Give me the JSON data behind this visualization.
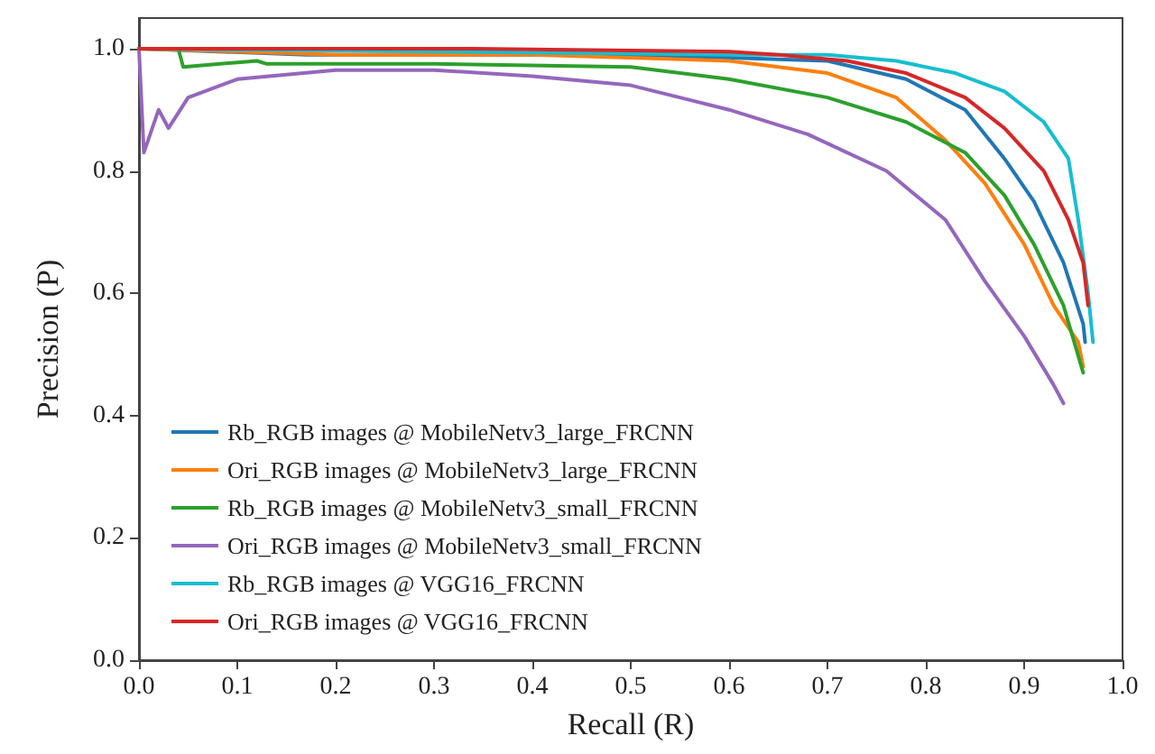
{
  "chart_data": {
    "type": "line",
    "xlabel": "Recall (R)",
    "ylabel": "Precision (P)",
    "xlim": [
      0,
      1
    ],
    "ylim": [
      0,
      1.05
    ],
    "xticks": [
      {
        "value": 0,
        "label": "0.0"
      },
      0.1,
      0.2,
      0.3,
      0.4,
      0.5,
      0.6,
      0.7,
      0.8,
      0.9,
      {
        "value": 1,
        "label": "1.0"
      }
    ],
    "yticks": [
      {
        "value": 0,
        "label": "0.0"
      },
      0.2,
      0.4,
      0.6,
      0.8,
      {
        "value": 1,
        "label": "1.0"
      }
    ],
    "grid": false,
    "legend": "bottom left",
    "marker": "none",
    "line_style": "solid",
    "series": [
      {
        "name": "Rb_RGB images @ MobileNetv3_large_FRCNN",
        "color": "#1f77b4",
        "x": [
          0,
          0.17,
          0.3,
          0.45,
          0.6,
          0.7,
          0.78,
          0.84,
          0.88,
          0.91,
          0.94,
          0.96,
          0.962
        ],
        "values": [
          1,
          0.99,
          0.99,
          0.99,
          0.985,
          0.98,
          0.95,
          0.9,
          0.82,
          0.75,
          0.65,
          0.55,
          0.52
        ]
      },
      {
        "name": "Ori_RGB images @ MobileNetv3_large_FRCNN",
        "color": "#ff7f0e",
        "x": [
          0,
          0.2,
          0.4,
          0.6,
          0.7,
          0.77,
          0.82,
          0.86,
          0.9,
          0.93,
          0.955,
          0.96
        ],
        "values": [
          1,
          0.99,
          0.99,
          0.98,
          0.96,
          0.92,
          0.85,
          0.78,
          0.68,
          0.58,
          0.52,
          0.48
        ]
      },
      {
        "name": "Rb_RGB images @ MobileNetv3_small_FRCNN",
        "color": "#2ca02c",
        "x": [
          0,
          0.04,
          0.045,
          0.12,
          0.13,
          0.3,
          0.5,
          0.6,
          0.7,
          0.78,
          0.84,
          0.88,
          0.91,
          0.94,
          0.96
        ],
        "values": [
          1,
          1,
          0.97,
          0.98,
          0.975,
          0.975,
          0.97,
          0.95,
          0.92,
          0.88,
          0.83,
          0.76,
          0.68,
          0.58,
          0.47
        ]
      },
      {
        "name": "Ori_RGB images @ MobileNetv3_small_FRCNN",
        "color": "#9467bd",
        "x": [
          0,
          0.005,
          0.02,
          0.03,
          0.05,
          0.1,
          0.2,
          0.3,
          0.4,
          0.5,
          0.6,
          0.68,
          0.76,
          0.82,
          0.86,
          0.9,
          0.93,
          0.94
        ],
        "values": [
          1,
          0.83,
          0.9,
          0.87,
          0.92,
          0.95,
          0.965,
          0.965,
          0.955,
          0.94,
          0.9,
          0.86,
          0.8,
          0.72,
          0.62,
          0.53,
          0.45,
          0.42
        ]
      },
      {
        "name": "Rb_RGB images @ VGG16_FRCNN",
        "color": "#17becf",
        "x": [
          0,
          0.3,
          0.6,
          0.7,
          0.77,
          0.83,
          0.88,
          0.92,
          0.945,
          0.955,
          0.965,
          0.97
        ],
        "values": [
          1,
          0.995,
          0.99,
          0.99,
          0.98,
          0.96,
          0.93,
          0.88,
          0.82,
          0.72,
          0.6,
          0.52
        ]
      },
      {
        "name": "Ori_RGB images @ VGG16_FRCNN",
        "color": "#d62728",
        "x": [
          0,
          0.34,
          0.6,
          0.65,
          0.72,
          0.78,
          0.84,
          0.88,
          0.92,
          0.945,
          0.96,
          0.965
        ],
        "values": [
          1,
          1,
          0.995,
          0.99,
          0.98,
          0.96,
          0.92,
          0.87,
          0.8,
          0.72,
          0.65,
          0.58
        ]
      }
    ]
  }
}
